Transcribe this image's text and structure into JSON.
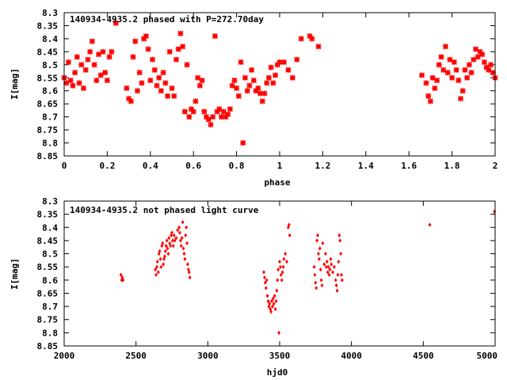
{
  "chart_data": [
    {
      "type": "scatter",
      "title": "140934-4935.2 phased with P=272.70day",
      "xlabel": "phase",
      "ylabel": "I[mag]",
      "xlim": [
        0,
        2
      ],
      "ylim": [
        8.3,
        8.85
      ],
      "y_inverted": true,
      "grid": false,
      "xticks": [
        0,
        0.2,
        0.4,
        0.6,
        0.8,
        1,
        1.2,
        1.4,
        1.6,
        1.8,
        2
      ],
      "xtick_labels": [
        "0",
        "0.2",
        "0.4",
        "0.6",
        "0.8",
        "1",
        "1.2",
        "1.4",
        "1.6",
        "1.8",
        "2"
      ],
      "yticks": [
        8.3,
        8.35,
        8.4,
        8.45,
        8.5,
        8.55,
        8.6,
        8.65,
        8.7,
        8.75,
        8.8,
        8.85
      ],
      "ytick_labels": [
        "8.3",
        "8.35",
        "8.4",
        "8.45",
        "8.5",
        "8.55",
        "8.6",
        "8.65",
        "8.7",
        "8.75",
        "8.8",
        "8.85"
      ],
      "marker": "star",
      "color": "#ff0000",
      "series": [
        {
          "points": [
            [
              0.0,
              8.55
            ],
            [
              0.01,
              8.57
            ],
            [
              0.02,
              8.49
            ],
            [
              0.03,
              8.56
            ],
            [
              0.04,
              8.58
            ],
            [
              0.05,
              8.53
            ],
            [
              0.06,
              8.47
            ],
            [
              0.07,
              8.57
            ],
            [
              0.08,
              8.5
            ],
            [
              0.09,
              8.59
            ],
            [
              0.1,
              8.52
            ],
            [
              0.11,
              8.48
            ],
            [
              0.12,
              8.45
            ],
            [
              0.13,
              8.41
            ],
            [
              0.14,
              8.5
            ],
            [
              0.15,
              8.56
            ],
            [
              0.16,
              8.46
            ],
            [
              0.17,
              8.54
            ],
            [
              0.18,
              8.45
            ],
            [
              0.19,
              8.53
            ],
            [
              0.2,
              8.56
            ],
            [
              0.21,
              8.47
            ],
            [
              0.22,
              8.45
            ],
            [
              0.24,
              8.34
            ],
            [
              0.29,
              8.59
            ],
            [
              0.3,
              8.63
            ],
            [
              0.31,
              8.64
            ],
            [
              0.32,
              8.47
            ],
            [
              0.33,
              8.41
            ],
            [
              0.34,
              8.6
            ],
            [
              0.35,
              8.53
            ],
            [
              0.36,
              8.57
            ],
            [
              0.37,
              8.4
            ],
            [
              0.38,
              8.39
            ],
            [
              0.39,
              8.44
            ],
            [
              0.4,
              8.56
            ],
            [
              0.41,
              8.48
            ],
            [
              0.42,
              8.52
            ],
            [
              0.43,
              8.58
            ],
            [
              0.44,
              8.55
            ],
            [
              0.45,
              8.6
            ],
            [
              0.46,
              8.53
            ],
            [
              0.47,
              8.57
            ],
            [
              0.48,
              8.62
            ],
            [
              0.49,
              8.45
            ],
            [
              0.5,
              8.59
            ],
            [
              0.51,
              8.62
            ],
            [
              0.52,
              8.48
            ],
            [
              0.53,
              8.44
            ],
            [
              0.54,
              8.38
            ],
            [
              0.55,
              8.43
            ],
            [
              0.56,
              8.68
            ],
            [
              0.57,
              8.5
            ],
            [
              0.58,
              8.7
            ],
            [
              0.59,
              8.67
            ],
            [
              0.6,
              8.68
            ],
            [
              0.61,
              8.64
            ],
            [
              0.62,
              8.55
            ],
            [
              0.63,
              8.58
            ],
            [
              0.64,
              8.56
            ],
            [
              0.65,
              8.68
            ],
            [
              0.66,
              8.7
            ],
            [
              0.67,
              8.71
            ],
            [
              0.68,
              8.73
            ],
            [
              0.69,
              8.7
            ],
            [
              0.7,
              8.39
            ],
            [
              0.71,
              8.68
            ],
            [
              0.72,
              8.67
            ],
            [
              0.73,
              8.7
            ],
            [
              0.74,
              8.68
            ],
            [
              0.75,
              8.7
            ],
            [
              0.76,
              8.69
            ],
            [
              0.77,
              8.67
            ],
            [
              0.78,
              8.58
            ],
            [
              0.79,
              8.56
            ],
            [
              0.8,
              8.59
            ],
            [
              0.81,
              8.62
            ],
            [
              0.82,
              8.49
            ],
            [
              0.83,
              8.8
            ],
            [
              0.84,
              8.55
            ],
            [
              0.85,
              8.6
            ],
            [
              0.86,
              8.58
            ],
            [
              0.87,
              8.52
            ],
            [
              0.88,
              8.56
            ],
            [
              0.89,
              8.6
            ],
            [
              0.9,
              8.59
            ],
            [
              0.91,
              8.61
            ],
            [
              0.92,
              8.64
            ],
            [
              0.93,
              8.61
            ],
            [
              0.94,
              8.57
            ],
            [
              0.95,
              8.55
            ],
            [
              0.96,
              8.51
            ],
            [
              0.97,
              8.57
            ],
            [
              0.98,
              8.54
            ],
            [
              0.99,
              8.5
            ],
            [
              1.0,
              8.49
            ],
            [
              1.02,
              8.49
            ],
            [
              1.04,
              8.52
            ],
            [
              1.06,
              8.55
            ],
            [
              1.08,
              8.48
            ],
            [
              1.1,
              8.4
            ],
            [
              1.14,
              8.39
            ],
            [
              1.15,
              8.4
            ],
            [
              1.18,
              8.43
            ],
            [
              1.66,
              8.54
            ],
            [
              1.68,
              8.57
            ],
            [
              1.69,
              8.62
            ],
            [
              1.7,
              8.64
            ],
            [
              1.71,
              8.55
            ],
            [
              1.72,
              8.59
            ],
            [
              1.73,
              8.56
            ],
            [
              1.74,
              8.5
            ],
            [
              1.75,
              8.47
            ],
            [
              1.76,
              8.52
            ],
            [
              1.77,
              8.43
            ],
            [
              1.78,
              8.53
            ],
            [
              1.79,
              8.48
            ],
            [
              1.8,
              8.55
            ],
            [
              1.81,
              8.49
            ],
            [
              1.82,
              8.52
            ],
            [
              1.83,
              8.56
            ],
            [
              1.84,
              8.63
            ],
            [
              1.85,
              8.6
            ],
            [
              1.86,
              8.52
            ],
            [
              1.87,
              8.55
            ],
            [
              1.88,
              8.5
            ],
            [
              1.89,
              8.53
            ],
            [
              1.9,
              8.48
            ],
            [
              1.91,
              8.44
            ],
            [
              1.92,
              8.47
            ],
            [
              1.93,
              8.45
            ],
            [
              1.94,
              8.46
            ],
            [
              1.95,
              8.49
            ],
            [
              1.96,
              8.51
            ],
            [
              1.97,
              8.52
            ],
            [
              1.98,
              8.5
            ],
            [
              1.99,
              8.53
            ],
            [
              2.0,
              8.55
            ]
          ]
        }
      ]
    },
    {
      "type": "scatter",
      "title": "140934-4935.2 not phased light curve",
      "xlabel": "hjd0",
      "ylabel": "I[mag]",
      "xlim": [
        2000,
        5000
      ],
      "ylim": [
        8.3,
        8.85
      ],
      "y_inverted": true,
      "grid": false,
      "xticks": [
        2000,
        2500,
        3000,
        3500,
        4000,
        4500,
        5000
      ],
      "xtick_labels": [
        "2000",
        "2500",
        "3000",
        "3500",
        "4000",
        "4500",
        "5000"
      ],
      "yticks": [
        8.3,
        8.35,
        8.4,
        8.45,
        8.5,
        8.55,
        8.6,
        8.65,
        8.7,
        8.75,
        8.8,
        8.85
      ],
      "ytick_labels": [
        "8.3",
        "8.35",
        "8.4",
        "8.45",
        "8.5",
        "8.55",
        "8.6",
        "8.65",
        "8.7",
        "8.75",
        "8.8",
        "8.85"
      ],
      "marker": "diamond",
      "color": "#ff0000",
      "series": [
        {
          "points": [
            [
              2395,
              8.58
            ],
            [
              2400,
              8.6
            ],
            [
              2405,
              8.59
            ],
            [
              2410,
              8.6
            ],
            [
              2635,
              8.56
            ],
            [
              2640,
              8.58
            ],
            [
              2645,
              8.55
            ],
            [
              2650,
              8.53
            ],
            [
              2655,
              8.57
            ],
            [
              2660,
              8.5
            ],
            [
              2665,
              8.49
            ],
            [
              2670,
              8.52
            ],
            [
              2675,
              8.55
            ],
            [
              2680,
              8.47
            ],
            [
              2685,
              8.46
            ],
            [
              2690,
              8.54
            ],
            [
              2695,
              8.52
            ],
            [
              2700,
              8.51
            ],
            [
              2705,
              8.49
            ],
            [
              2710,
              8.47
            ],
            [
              2715,
              8.45
            ],
            [
              2720,
              8.48
            ],
            [
              2725,
              8.5
            ],
            [
              2730,
              8.44
            ],
            [
              2735,
              8.46
            ],
            [
              2740,
              8.47
            ],
            [
              2745,
              8.43
            ],
            [
              2750,
              8.42
            ],
            [
              2755,
              8.45
            ],
            [
              2760,
              8.47
            ],
            [
              2765,
              8.43
            ],
            [
              2770,
              8.45
            ],
            [
              2780,
              8.44
            ],
            [
              2790,
              8.41
            ],
            [
              2800,
              8.4
            ],
            [
              2805,
              8.42
            ],
            [
              2810,
              8.45
            ],
            [
              2815,
              8.47
            ],
            [
              2820,
              8.44
            ],
            [
              2825,
              8.38
            ],
            [
              2830,
              8.48
            ],
            [
              2835,
              8.5
            ],
            [
              2840,
              8.52
            ],
            [
              2845,
              8.43
            ],
            [
              2850,
              8.4
            ],
            [
              2855,
              8.46
            ],
            [
              2860,
              8.54
            ],
            [
              2865,
              8.56
            ],
            [
              2870,
              8.57
            ],
            [
              2875,
              8.59
            ],
            [
              3390,
              8.57
            ],
            [
              3395,
              8.59
            ],
            [
              3400,
              8.61
            ],
            [
              3405,
              8.63
            ],
            [
              3410,
              8.6
            ],
            [
              3415,
              8.66
            ],
            [
              3420,
              8.68
            ],
            [
              3425,
              8.7
            ],
            [
              3430,
              8.69
            ],
            [
              3435,
              8.71
            ],
            [
              3440,
              8.72
            ],
            [
              3445,
              8.68
            ],
            [
              3450,
              8.7
            ],
            [
              3455,
              8.67
            ],
            [
              3460,
              8.69
            ],
            [
              3465,
              8.66
            ],
            [
              3470,
              8.71
            ],
            [
              3475,
              8.68
            ],
            [
              3480,
              8.64
            ],
            [
              3485,
              8.6
            ],
            [
              3490,
              8.56
            ],
            [
              3495,
              8.8
            ],
            [
              3500,
              8.53
            ],
            [
              3505,
              8.55
            ],
            [
              3510,
              8.58
            ],
            [
              3515,
              8.6
            ],
            [
              3520,
              8.57
            ],
            [
              3525,
              8.55
            ],
            [
              3530,
              8.52
            ],
            [
              3540,
              8.5
            ],
            [
              3550,
              8.53
            ],
            [
              3560,
              8.4
            ],
            [
              3565,
              8.39
            ],
            [
              3570,
              8.43
            ],
            [
              3740,
              8.55
            ],
            [
              3745,
              8.58
            ],
            [
              3750,
              8.61
            ],
            [
              3755,
              8.63
            ],
            [
              3760,
              8.45
            ],
            [
              3765,
              8.43
            ],
            [
              3770,
              8.5
            ],
            [
              3775,
              8.52
            ],
            [
              3780,
              8.48
            ],
            [
              3785,
              8.56
            ],
            [
              3790,
              8.6
            ],
            [
              3795,
              8.62
            ],
            [
              3800,
              8.46
            ],
            [
              3810,
              8.54
            ],
            [
              3820,
              8.5
            ],
            [
              3825,
              8.55
            ],
            [
              3830,
              8.53
            ],
            [
              3835,
              8.57
            ],
            [
              3840,
              8.55
            ],
            [
              3845,
              8.58
            ],
            [
              3850,
              8.56
            ],
            [
              3855,
              8.52
            ],
            [
              3860,
              8.54
            ],
            [
              3870,
              8.57
            ],
            [
              3880,
              8.55
            ],
            [
              3890,
              8.6
            ],
            [
              3895,
              8.62
            ],
            [
              3900,
              8.64
            ],
            [
              3905,
              8.58
            ],
            [
              3910,
              8.53
            ],
            [
              3915,
              8.43
            ],
            [
              3920,
              8.45
            ],
            [
              3925,
              8.5
            ],
            [
              3930,
              8.58
            ],
            [
              3935,
              8.6
            ],
            [
              4545,
              8.39
            ],
            [
              4995,
              8.34
            ]
          ]
        }
      ]
    }
  ]
}
